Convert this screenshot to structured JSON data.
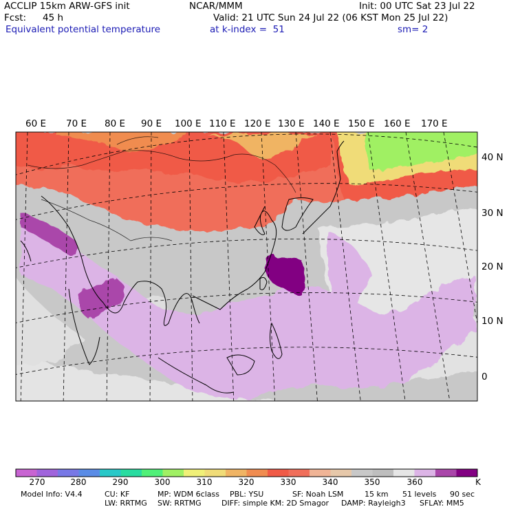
{
  "header": {
    "model_title": "ACCLIP 15km ARW-GFS init",
    "org": "NCAR/MMM",
    "init_time": "Init: 00 UTC Sat 23 Jul 22",
    "forecast_label": "Fcst:",
    "forecast_hours": "45 h",
    "valid_time": "Valid: 21 UTC Sun 24 Jul 22 (06 KST Mon 25 Jul 22)",
    "field_name": "Equivalent potential temperature",
    "level_text": "at k-index =  51",
    "smoothing": "sm= 2"
  },
  "map": {
    "longitude_labels": [
      "60 E",
      "70 E",
      "80 E",
      "90 E",
      "100 E",
      "110 E",
      "120 E",
      "130 E",
      "140 E",
      "150 E",
      "160 E",
      "170 E"
    ],
    "latitude_labels": [
      "40 N",
      "30 N",
      "20 N",
      "10 N",
      "0"
    ]
  },
  "colorbar": {
    "colors": [
      "#c864d2",
      "#a064dc",
      "#7878e6",
      "#5a8ce6",
      "#28c8c8",
      "#28dca0",
      "#50f078",
      "#a0f064",
      "#f0f078",
      "#f0dc78",
      "#f0b464",
      "#f08c50",
      "#f05a46",
      "#f06e5a",
      "#f0b496",
      "#e6c8aa",
      "#c8c8c8",
      "#bebebe",
      "#e6e6e6",
      "#dcb4e6",
      "#aa46aa",
      "#820082"
    ],
    "tick_labels": [
      "270",
      "280",
      "290",
      "300",
      "310",
      "320",
      "330",
      "340",
      "350",
      "360"
    ],
    "unit": "K"
  },
  "footer": {
    "model_info": "Model Info: V4.4",
    "cu": "CU: KF",
    "mp": "MP: WDM 6class",
    "pbl": "PBL: YSU",
    "sf": "SF: Noah LSM",
    "resolution": "15 km",
    "levels": "51 levels",
    "timestep": "90 sec",
    "lw": "LW: RRTMG",
    "sw": "SW: RRTMG",
    "diff": "DIFF: simple KM: 2D Smagor",
    "damp": "DAMP: Rayleigh3",
    "sflay": "SFLAY: MM5"
  }
}
